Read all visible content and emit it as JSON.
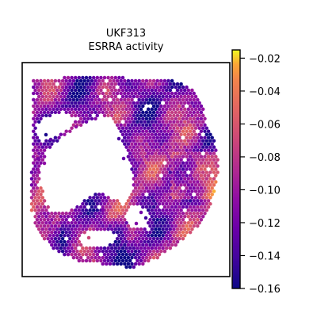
{
  "chart_data": {
    "type": "heatmap",
    "title": "UKF313",
    "subtitle": "ESRRA activity",
    "colormap": "plasma",
    "colorbar": {
      "min": -0.16,
      "max": -0.015,
      "ticks": [
        -0.02,
        -0.04,
        -0.06,
        -0.08,
        -0.1,
        -0.12,
        -0.14,
        -0.16
      ],
      "tick_labels": [
        "−0.02",
        "−0.04",
        "−0.06",
        "−0.08",
        "−0.10",
        "−0.12",
        "−0.14",
        "−0.16"
      ]
    },
    "xlabel": "",
    "ylabel": "",
    "grid": false,
    "spot_layout": "hexagonal spatial spots on tissue section with a large empty region left-center"
  }
}
